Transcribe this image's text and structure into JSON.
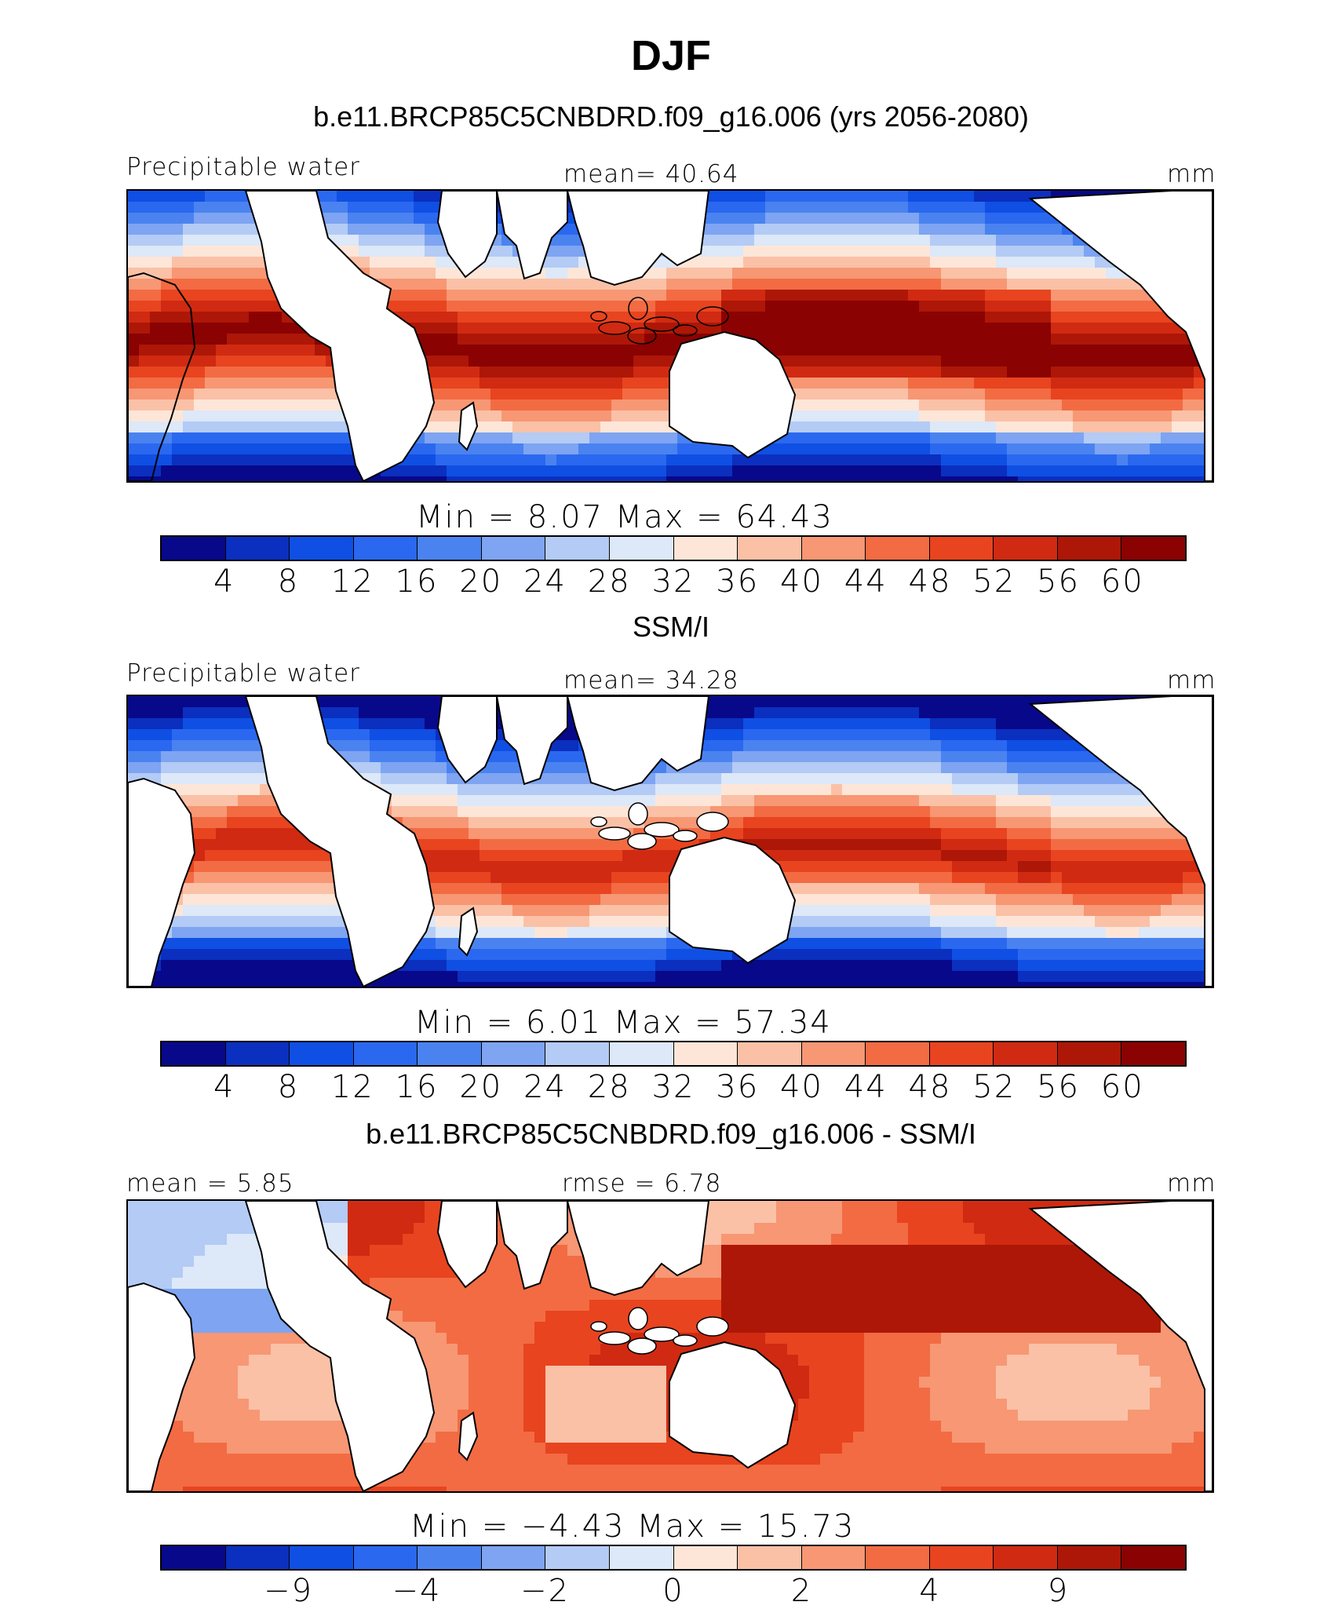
{
  "figure": {
    "title": "DJF"
  },
  "colors": {
    "palette": [
      "#08088a",
      "#0b2fbf",
      "#0f4fe3",
      "#2a68f0",
      "#4a83f0",
      "#7ea4f2",
      "#b3cbf5",
      "#dde8f8",
      "#fde6d8",
      "#fac1a7",
      "#f79774",
      "#f26b43",
      "#e8441f",
      "#d02a12",
      "#ad1707",
      "#8a0202"
    ],
    "land": "#ffffff",
    "coast": "#000000"
  },
  "panels": [
    {
      "title": "b.e11.BRCP85C5CNBDRD.f09_g16.006 (yrs 2056-2080)",
      "left_label": "Precipitable water",
      "center_label": "mean=  40.64",
      "right_label": "mm",
      "stats": "Min =    8.07 Max =   64.43",
      "colorbar_ticks": [
        "4",
        "8",
        "12",
        "16",
        "20",
        "24",
        "28",
        "32",
        "36",
        "40",
        "44",
        "48",
        "52",
        "56",
        "60"
      ],
      "map_regime": "model"
    },
    {
      "title": "SSM/I",
      "left_label": "Precipitable water",
      "center_label": "mean=  34.28",
      "right_label": "mm",
      "stats": "Min =    6.01 Max =   57.34",
      "colorbar_ticks": [
        "4",
        "8",
        "12",
        "16",
        "20",
        "24",
        "28",
        "32",
        "36",
        "40",
        "44",
        "48",
        "52",
        "56",
        "60"
      ],
      "map_regime": "obs"
    },
    {
      "title": "b.e11.BRCP85C5CNBDRD.f09_g16.006 - SSM/I",
      "left_label": "mean =   5.85",
      "center_label": "rmse =   6.78",
      "right_label": "mm",
      "stats": "Min =  −4.43 Max =   15.73",
      "colorbar_ticks": [
        "−9",
        "−4",
        "−2",
        "0",
        "2",
        "4",
        "9"
      ],
      "colorbar_tick_positions": [
        2,
        4,
        6,
        8,
        10,
        12,
        14
      ],
      "map_regime": "diff"
    }
  ]
}
